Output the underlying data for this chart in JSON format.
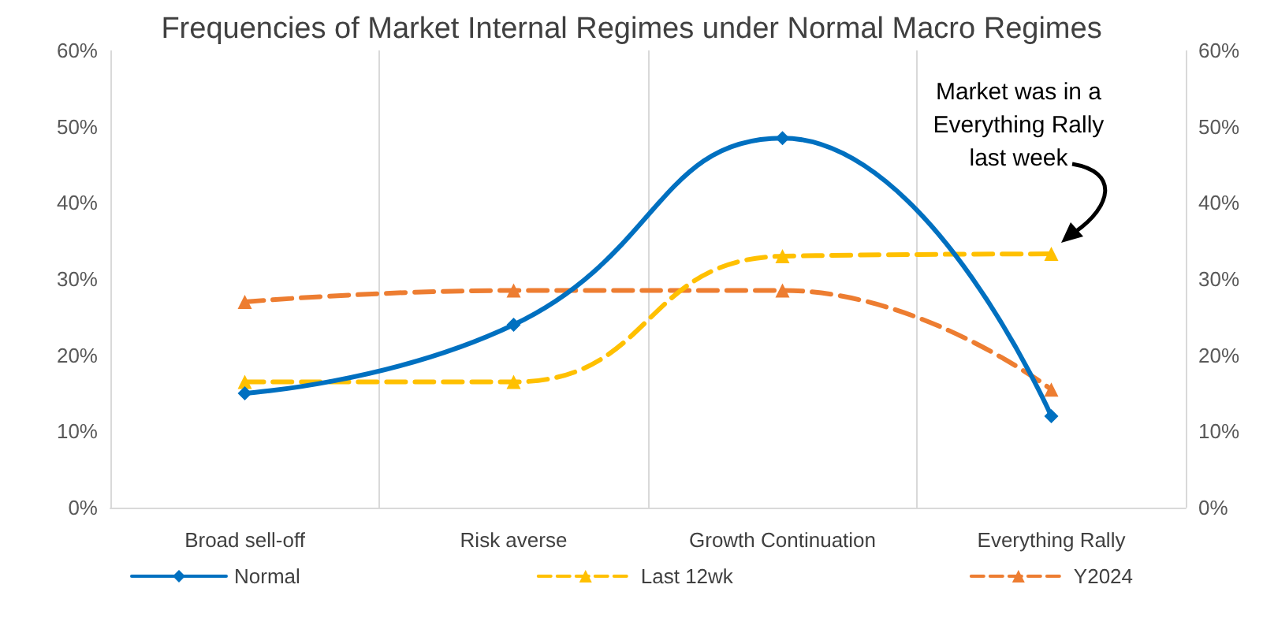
{
  "chart_data": {
    "type": "line",
    "title": "Frequencies of Market Internal Regimes under Normal Macro Regimes",
    "categories": [
      "Broad sell-off",
      "Risk averse",
      "Growth Continuation",
      "Everything Rally"
    ],
    "series": [
      {
        "name": "Normal",
        "color": "#0070c0",
        "values": [
          15,
          24,
          48.5,
          12
        ],
        "marker": "diamond",
        "line_style": "solid"
      },
      {
        "name": "Last 12wk",
        "color": "#ffc000",
        "values": [
          16.5,
          16.5,
          33,
          33.3
        ],
        "marker": "triangle",
        "line_style": "dashed"
      },
      {
        "name": "Y2024",
        "color": "#ed7d31",
        "values": [
          27,
          28.5,
          28.5,
          15.5
        ],
        "marker": "triangle",
        "line_style": "dashed"
      }
    ],
    "ylim": [
      0,
      60
    ],
    "yticks": [
      {
        "value": 0,
        "label": "0%"
      },
      {
        "value": 10,
        "label": "10%"
      },
      {
        "value": 20,
        "label": "20%"
      },
      {
        "value": 30,
        "label": "30%"
      },
      {
        "value": 40,
        "label": "40%"
      },
      {
        "value": 50,
        "label": "50%"
      },
      {
        "value": 60,
        "label": "60%"
      }
    ],
    "y2lim": [
      0,
      60
    ],
    "y2ticks": [
      {
        "value": 0,
        "label": "0%"
      },
      {
        "value": 10,
        "label": "10%"
      },
      {
        "value": 20,
        "label": "20%"
      },
      {
        "value": 30,
        "label": "30%"
      },
      {
        "value": 40,
        "label": "40%"
      },
      {
        "value": 50,
        "label": "50%"
      },
      {
        "value": 60,
        "label": "60%"
      }
    ],
    "grid": "x",
    "legend": "bottom",
    "annotations": [
      "Market was in a\nEverything Rally\nlast week"
    ]
  }
}
